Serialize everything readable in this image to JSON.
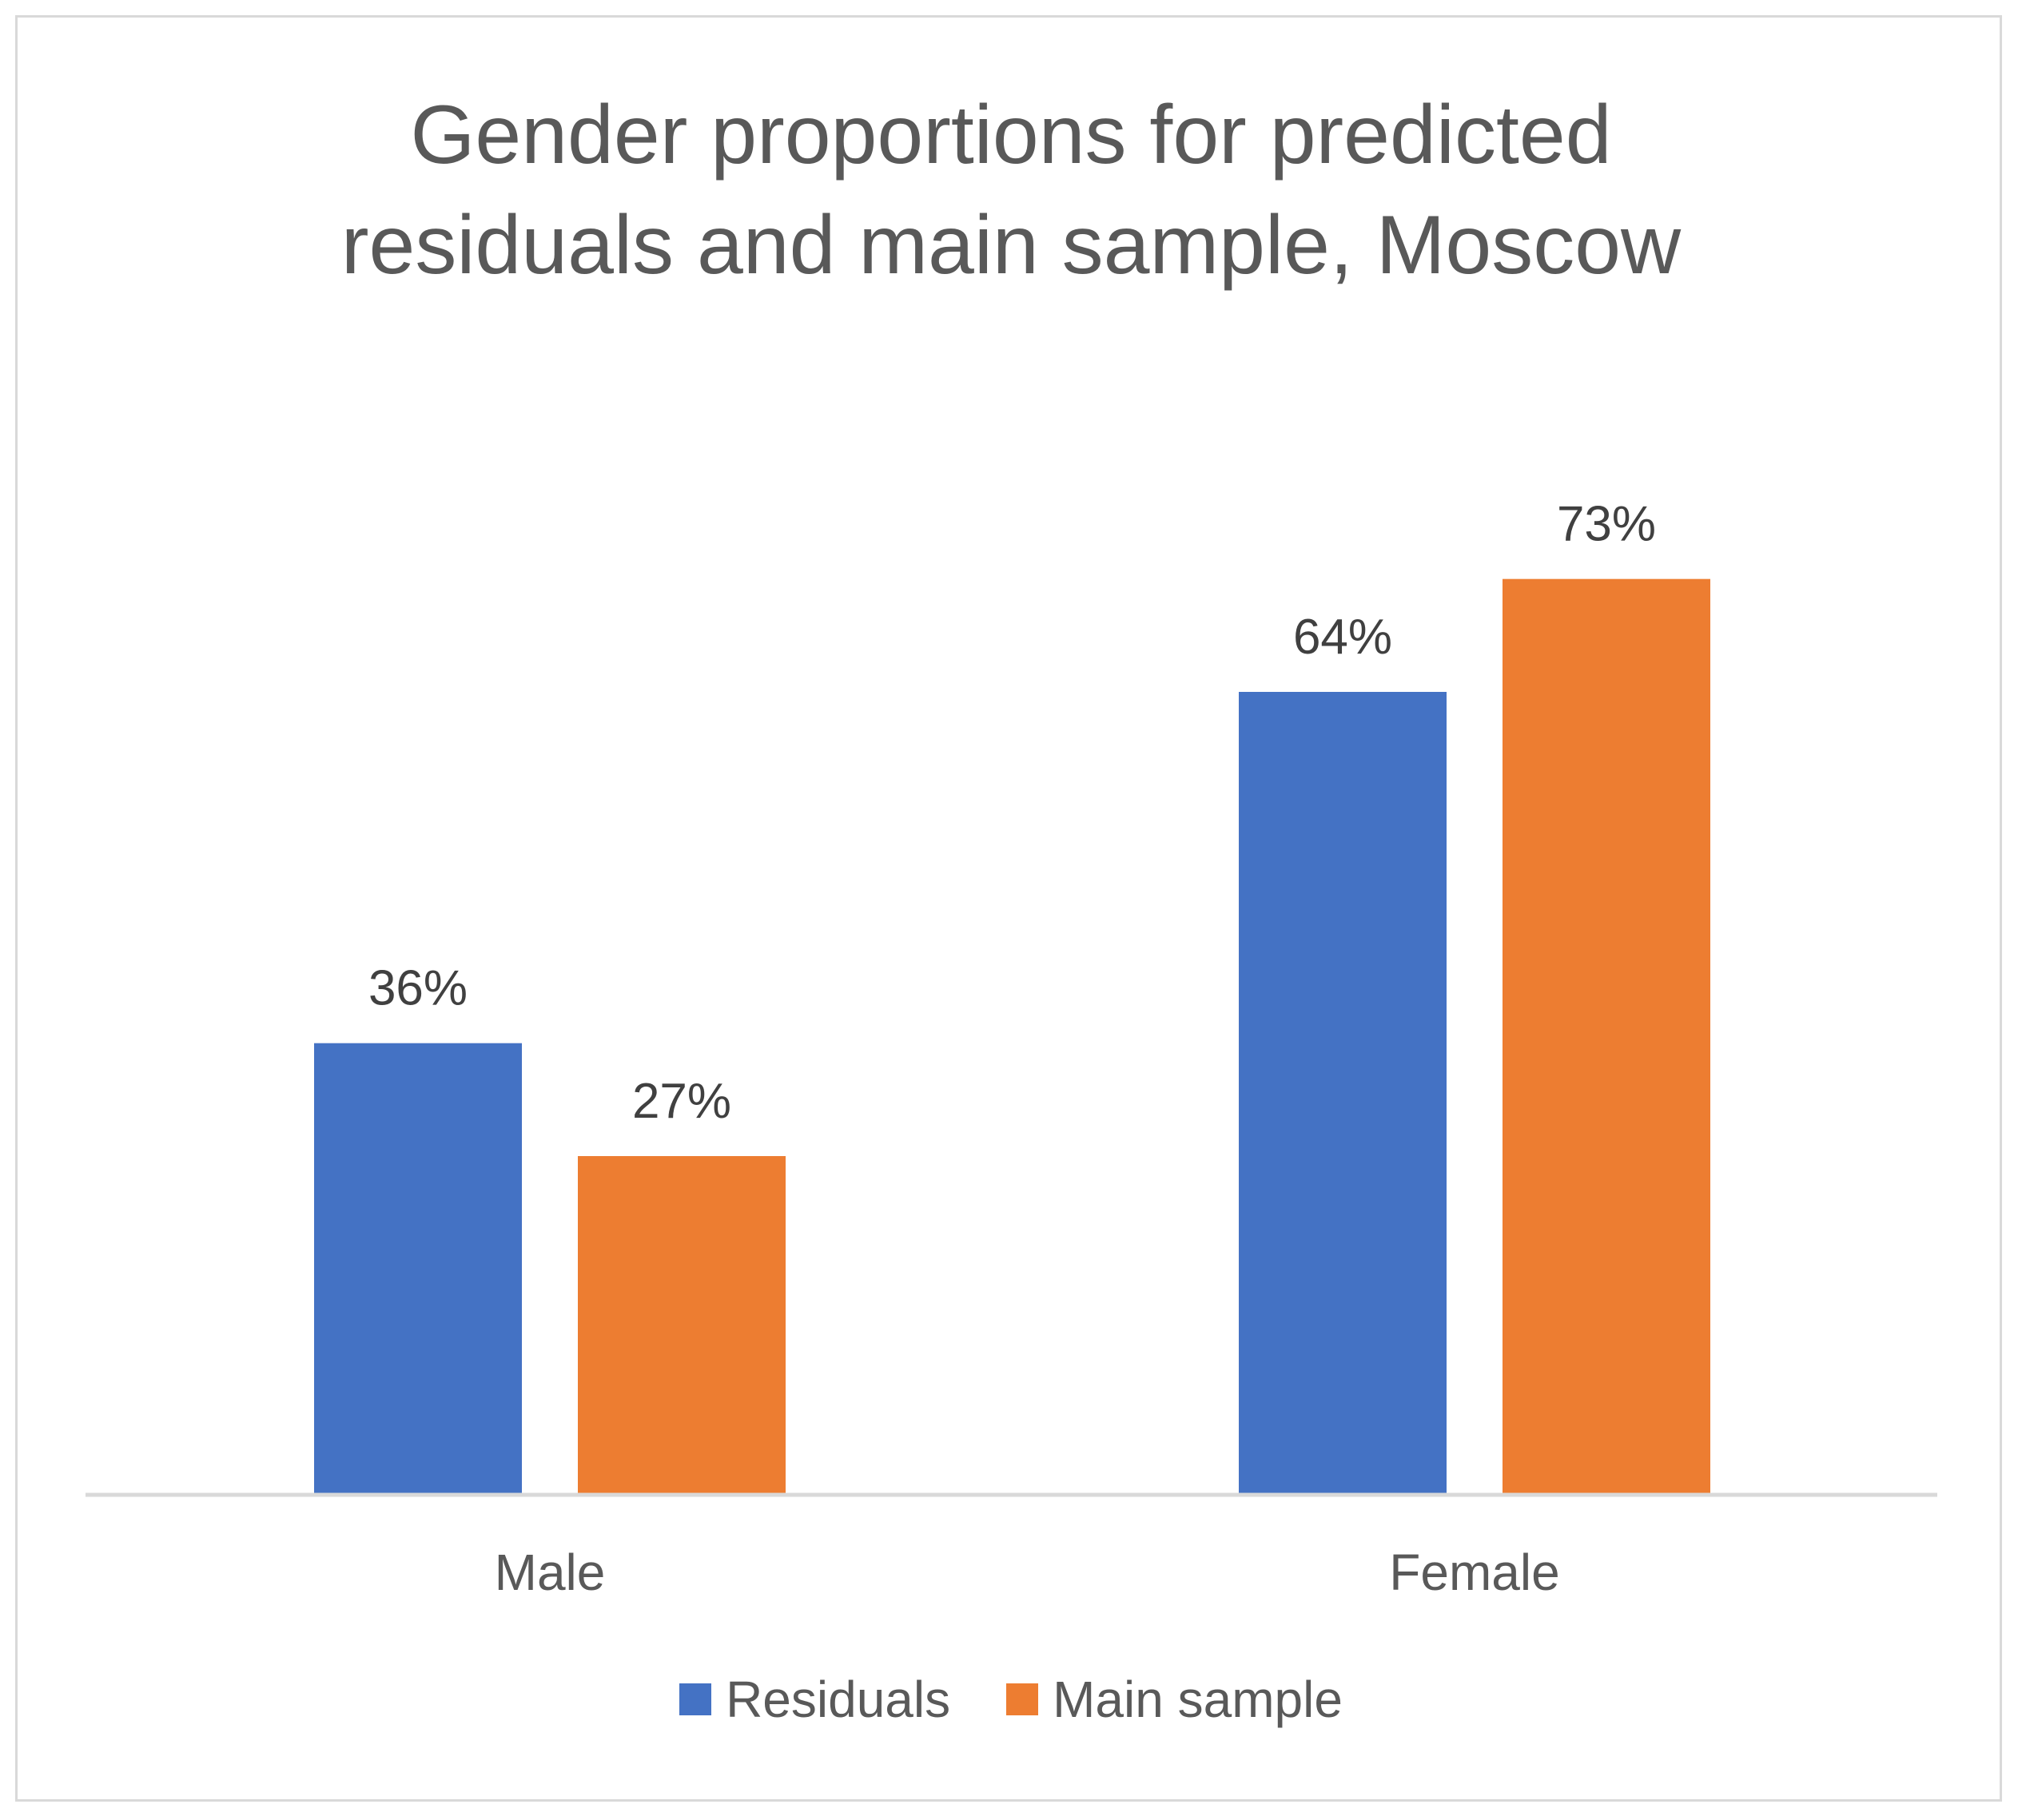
{
  "chart_data": {
    "type": "bar",
    "title": "Gender proportions for predicted residuals and main sample, Moscow",
    "title_lines": [
      "Gender proportions for predicted",
      "residuals and main sample, Moscow"
    ],
    "categories": [
      "Male",
      "Female"
    ],
    "series": [
      {
        "name": "Residuals",
        "values": [
          36,
          64
        ],
        "labels": [
          "36%",
          "64%"
        ],
        "color": "#4472c4"
      },
      {
        "name": "Main sample",
        "values": [
          27,
          73
        ],
        "labels": [
          "27%",
          "73%"
        ],
        "color": "#ed7d31"
      }
    ],
    "unit": "%",
    "ylim": [
      0,
      80
    ],
    "grid": false,
    "legend_position": "bottom",
    "axis_color": "#d9d9d9",
    "text_color": "#595959",
    "label_color": "#404040"
  }
}
